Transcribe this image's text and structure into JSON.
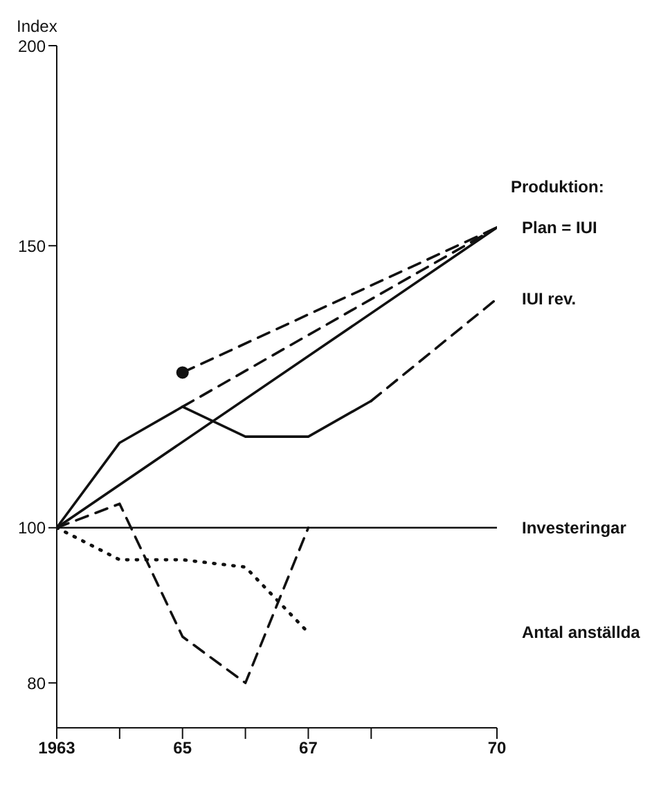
{
  "chart_data": {
    "type": "line",
    "ylabel": "Index",
    "log": true,
    "grid": false,
    "legend": false,
    "xlim": [
      1963,
      1970
    ],
    "xticks": [
      1963,
      {
        "value": 1964,
        "label": null
      },
      {
        "value": 1965,
        "label": "65"
      },
      {
        "value": 1966,
        "label": null
      },
      {
        "value": 1967,
        "label": "67"
      },
      {
        "value": 1968,
        "label": null
      },
      {
        "value": 1970,
        "label": "70"
      }
    ],
    "ylim": [
      75,
      200
    ],
    "yticks": [
      80,
      100,
      150,
      200
    ],
    "annotations": [
      "Produktion:"
    ],
    "series": [
      {
        "color": "#111111",
        "line_style": "solid",
        "x": [
          1963,
          1964,
          1965,
          1966,
          1967,
          1968
        ],
        "values": [
          100,
          113,
          119,
          114,
          114,
          120
        ]
      },
      {
        "name": "Plan = IUI",
        "color": "#111111",
        "line_style": "solid",
        "x": [
          1963,
          1970
        ],
        "values": [
          100,
          154
        ]
      },
      {
        "color": "#111111",
        "line_style": "dashed",
        "x": [
          1965,
          1970
        ],
        "values": [
          125,
          154
        ]
      },
      {
        "color": "#111111",
        "line_style": "dashed",
        "x": [
          1965,
          1970
        ],
        "values": [
          119,
          154
        ]
      },
      {
        "type": "scatter",
        "color": "#111111",
        "marker": "circle",
        "x": [
          1965
        ],
        "values": [
          125
        ]
      },
      {
        "name": "IUI rev.",
        "color": "#111111",
        "line_style": "dashed",
        "x": [
          1968,
          1970
        ],
        "values": [
          120,
          139
        ]
      },
      {
        "name": "Investeringar",
        "color": "#111111",
        "line_style": "dashed",
        "x": [
          1963,
          1964,
          1965,
          1966,
          1967
        ],
        "values": [
          100,
          103.5,
          85.5,
          80,
          100
        ]
      },
      {
        "name": "Antal anställda",
        "color": "#111111",
        "line_style": "dotted",
        "x": [
          1963,
          1964,
          1965,
          1966,
          1967
        ],
        "values": [
          100,
          95.5,
          95.5,
          94.5,
          86
        ]
      }
    ],
    "ref_lines": [
      {
        "axis": "y",
        "value": 100,
        "color": "#111111",
        "line_style": "solid"
      }
    ]
  }
}
